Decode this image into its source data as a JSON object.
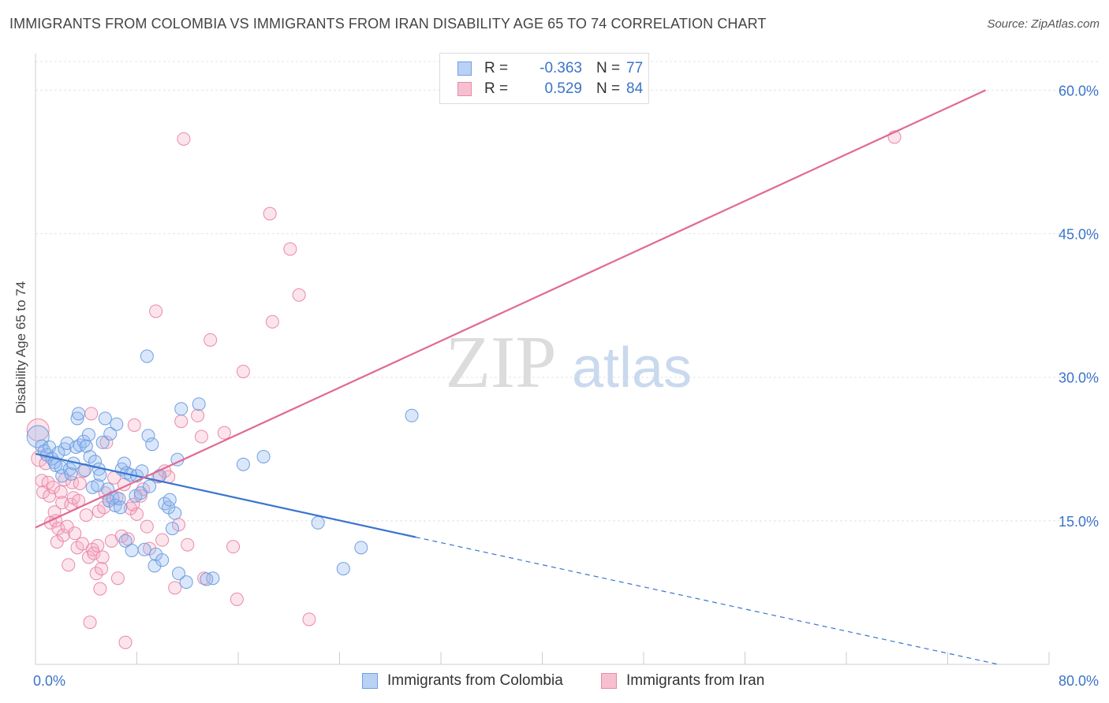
{
  "header": {
    "title": "IMMIGRANTS FROM COLOMBIA VS IMMIGRANTS FROM IRAN DISABILITY AGE 65 TO 74 CORRELATION CHART",
    "source": "Source: ZipAtlas.com"
  },
  "watermark": {
    "zip": "ZIP",
    "atlas": "atlas"
  },
  "legend": {
    "r_label": "R =",
    "n_label": "N =",
    "rows": [
      {
        "r": "-0.363",
        "n": "77",
        "fill": "#b9d1f5",
        "stroke": "#6f9fe0"
      },
      {
        "r": "0.529",
        "n": "84",
        "fill": "#f7c0d0",
        "stroke": "#e98aa8"
      }
    ]
  },
  "bottom_legend": [
    {
      "label": "Immigrants from Colombia"
    },
    {
      "label": "Immigrants from Iran"
    }
  ],
  "chart_data": {
    "type": "scatter",
    "title": "IMMIGRANTS FROM COLOMBIA VS IMMIGRANTS FROM IRAN DISABILITY AGE 65 TO 74 CORRELATION CHART",
    "xlabel": "",
    "ylabel": "Disability Age 65 to 74",
    "xlim": [
      0,
      80
    ],
    "ylim": [
      0,
      63
    ],
    "x_tick_labels": [
      "0.0%",
      "80.0%"
    ],
    "y_ticks": [
      15,
      30,
      45,
      60
    ],
    "y_tick_labels": [
      "15.0%",
      "30.0%",
      "45.0%",
      "60.0%"
    ],
    "grid": true,
    "legend_position": "top-center",
    "colors": {
      "colombia": "#3a74d0",
      "iran": "#e06a93",
      "tick_label": "#3a74c9"
    },
    "series": [
      {
        "name": "Immigrants from Colombia",
        "r": -0.363,
        "n": 77,
        "trend": {
          "x0": 0,
          "y0": 22.0,
          "x1": 30,
          "y1": 13.3,
          "dashed_to_x": 76,
          "dashed_to_y": 0
        },
        "points": [
          [
            0.2,
            23.8,
            14
          ],
          [
            0.5,
            22.8,
            8
          ],
          [
            0.7,
            22.3,
            8
          ],
          [
            0.9,
            21.9,
            8
          ],
          [
            1.1,
            22.7,
            8
          ],
          [
            1.3,
            21.5,
            8
          ],
          [
            1.5,
            21.1,
            8
          ],
          [
            1.6,
            20.8,
            8
          ],
          [
            1.8,
            22.1,
            8
          ],
          [
            2.0,
            20.6,
            8
          ],
          [
            2.1,
            19.7,
            8
          ],
          [
            2.3,
            22.5,
            8
          ],
          [
            2.5,
            23.1,
            8
          ],
          [
            2.7,
            20.4,
            8
          ],
          [
            2.8,
            19.9,
            8
          ],
          [
            3.0,
            21.0,
            8
          ],
          [
            3.2,
            22.7,
            8
          ],
          [
            3.3,
            25.7,
            8
          ],
          [
            3.4,
            26.2,
            8
          ],
          [
            3.5,
            22.9,
            8
          ],
          [
            3.8,
            23.3,
            8
          ],
          [
            3.9,
            20.3,
            8
          ],
          [
            4.0,
            22.8,
            8
          ],
          [
            4.2,
            24.0,
            8
          ],
          [
            4.3,
            21.7,
            8
          ],
          [
            4.5,
            18.5,
            8
          ],
          [
            4.7,
            21.2,
            8
          ],
          [
            4.9,
            18.7,
            8
          ],
          [
            5.0,
            20.4,
            8
          ],
          [
            5.1,
            19.8,
            8
          ],
          [
            5.3,
            23.2,
            8
          ],
          [
            5.5,
            25.7,
            8
          ],
          [
            5.7,
            18.3,
            8
          ],
          [
            5.8,
            17.1,
            8
          ],
          [
            5.9,
            24.1,
            8
          ],
          [
            6.1,
            17.4,
            8
          ],
          [
            6.3,
            16.6,
            8
          ],
          [
            6.4,
            25.1,
            8
          ],
          [
            6.6,
            17.3,
            8
          ],
          [
            6.7,
            16.4,
            8
          ],
          [
            6.8,
            20.4,
            8
          ],
          [
            7.0,
            21.0,
            8
          ],
          [
            7.1,
            12.9,
            8
          ],
          [
            7.2,
            20.0,
            8
          ],
          [
            7.5,
            19.8,
            8
          ],
          [
            7.6,
            11.9,
            8
          ],
          [
            7.9,
            17.6,
            8
          ],
          [
            8.0,
            19.7,
            8
          ],
          [
            8.3,
            17.9,
            8
          ],
          [
            8.4,
            20.2,
            8
          ],
          [
            8.6,
            12.0,
            8
          ],
          [
            8.8,
            32.2,
            8
          ],
          [
            8.9,
            23.9,
            8
          ],
          [
            9.0,
            18.6,
            8
          ],
          [
            9.2,
            23.0,
            8
          ],
          [
            9.4,
            10.3,
            8
          ],
          [
            9.5,
            11.5,
            8
          ],
          [
            9.8,
            19.7,
            8
          ],
          [
            10.0,
            10.9,
            8
          ],
          [
            10.2,
            16.8,
            8
          ],
          [
            10.5,
            16.4,
            8
          ],
          [
            10.6,
            17.2,
            8
          ],
          [
            10.8,
            14.2,
            8
          ],
          [
            11.0,
            15.8,
            8
          ],
          [
            11.2,
            21.4,
            8
          ],
          [
            11.5,
            26.7,
            8
          ],
          [
            11.9,
            8.6,
            8
          ],
          [
            12.9,
            27.2,
            8
          ],
          [
            14.0,
            9.0,
            8
          ],
          [
            16.4,
            20.9,
            8
          ],
          [
            18.0,
            21.7,
            8
          ],
          [
            22.3,
            14.8,
            8
          ],
          [
            24.3,
            10.0,
            8
          ],
          [
            25.7,
            12.2,
            8
          ],
          [
            29.7,
            26.0,
            8
          ],
          [
            11.3,
            9.5,
            8
          ],
          [
            13.5,
            8.9,
            8
          ]
        ]
      },
      {
        "name": "Immigrants from Iran",
        "r": 0.529,
        "n": 84,
        "trend": {
          "x0": 0,
          "y0": 14.3,
          "x1": 75,
          "y1": 60.0
        },
        "points": [
          [
            0.2,
            24.5,
            14
          ],
          [
            0.3,
            21.5,
            10
          ],
          [
            0.5,
            19.2,
            8
          ],
          [
            0.6,
            18.0,
            8
          ],
          [
            0.8,
            21.0,
            8
          ],
          [
            1.0,
            19.0,
            8
          ],
          [
            1.1,
            17.6,
            8
          ],
          [
            1.2,
            14.8,
            8
          ],
          [
            1.4,
            18.5,
            8
          ],
          [
            1.5,
            15.9,
            8
          ],
          [
            1.6,
            15.0,
            8
          ],
          [
            1.7,
            12.8,
            8
          ],
          [
            1.8,
            14.2,
            8
          ],
          [
            2.0,
            18.0,
            8
          ],
          [
            2.1,
            16.9,
            8
          ],
          [
            2.2,
            13.5,
            8
          ],
          [
            2.3,
            19.3,
            8
          ],
          [
            2.5,
            14.4,
            8
          ],
          [
            2.6,
            10.4,
            8
          ],
          [
            2.8,
            16.7,
            8
          ],
          [
            2.9,
            19.0,
            8
          ],
          [
            3.0,
            17.4,
            8
          ],
          [
            3.1,
            13.7,
            8
          ],
          [
            3.3,
            12.2,
            8
          ],
          [
            3.4,
            17.1,
            8
          ],
          [
            3.5,
            18.9,
            8
          ],
          [
            3.7,
            12.6,
            8
          ],
          [
            3.8,
            20.2,
            8
          ],
          [
            4.0,
            15.6,
            8
          ],
          [
            4.2,
            11.2,
            8
          ],
          [
            4.3,
            4.4,
            8
          ],
          [
            4.4,
            26.2,
            8
          ],
          [
            4.5,
            12.0,
            8
          ],
          [
            4.6,
            11.6,
            8
          ],
          [
            4.8,
            9.5,
            8
          ],
          [
            4.9,
            12.4,
            8
          ],
          [
            5.0,
            16.0,
            8
          ],
          [
            5.1,
            7.9,
            8
          ],
          [
            5.2,
            10.0,
            8
          ],
          [
            5.3,
            11.2,
            8
          ],
          [
            5.4,
            16.4,
            8
          ],
          [
            5.5,
            17.9,
            8
          ],
          [
            5.6,
            23.2,
            8
          ],
          [
            5.8,
            17.1,
            8
          ],
          [
            6.0,
            12.9,
            8
          ],
          [
            6.2,
            19.5,
            8
          ],
          [
            6.4,
            17.4,
            8
          ],
          [
            6.5,
            9.0,
            8
          ],
          [
            6.8,
            13.4,
            8
          ],
          [
            7.0,
            18.8,
            8
          ],
          [
            7.1,
            2.3,
            8
          ],
          [
            7.3,
            13.1,
            8
          ],
          [
            7.5,
            16.3,
            8
          ],
          [
            7.7,
            16.7,
            8
          ],
          [
            7.8,
            25.0,
            8
          ],
          [
            8.0,
            15.7,
            8
          ],
          [
            8.3,
            17.6,
            8
          ],
          [
            8.5,
            18.3,
            8
          ],
          [
            8.8,
            14.4,
            8
          ],
          [
            9.0,
            12.1,
            8
          ],
          [
            9.5,
            36.9,
            8
          ],
          [
            9.7,
            19.6,
            8
          ],
          [
            10.0,
            13.0,
            8
          ],
          [
            10.2,
            20.2,
            8
          ],
          [
            10.5,
            19.6,
            8
          ],
          [
            11.0,
            8.0,
            8
          ],
          [
            11.3,
            14.6,
            8
          ],
          [
            11.5,
            25.4,
            8
          ],
          [
            11.7,
            54.9,
            8
          ],
          [
            12.0,
            12.5,
            8
          ],
          [
            12.8,
            26.0,
            8
          ],
          [
            13.1,
            23.8,
            8
          ],
          [
            13.3,
            9.0,
            8
          ],
          [
            13.8,
            33.9,
            8
          ],
          [
            14.9,
            24.2,
            8
          ],
          [
            15.6,
            12.3,
            8
          ],
          [
            15.9,
            6.8,
            8
          ],
          [
            16.4,
            30.6,
            8
          ],
          [
            18.5,
            47.1,
            8
          ],
          [
            18.7,
            35.8,
            8
          ],
          [
            20.1,
            43.4,
            8
          ],
          [
            20.8,
            38.6,
            8
          ],
          [
            21.6,
            4.7,
            8
          ],
          [
            67.8,
            55.1,
            8
          ]
        ]
      }
    ]
  }
}
